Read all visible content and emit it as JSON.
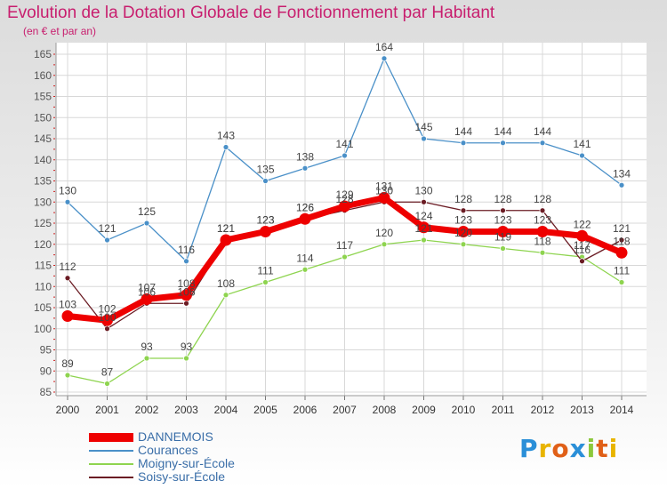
{
  "header": {
    "title": "Evolution de la Dotation Globale de Fonctionnement par Habitant",
    "subtitle": "(en € et par an)"
  },
  "logo": {
    "text": "Proxiti"
  },
  "chart_data": {
    "type": "line",
    "x": [
      2000,
      2001,
      2002,
      2003,
      2004,
      2005,
      2006,
      2007,
      2008,
      2009,
      2010,
      2011,
      2012,
      2013,
      2014
    ],
    "ylim": [
      85,
      165
    ],
    "yticks": [
      85,
      90,
      95,
      100,
      105,
      110,
      115,
      120,
      125,
      130,
      135,
      140,
      145,
      150,
      155,
      160,
      165
    ],
    "grid": true,
    "legend_position": "bottom",
    "series": [
      {
        "name": "Courances",
        "color": "#4a90c8",
        "values": [
          130,
          121,
          125,
          116,
          143,
          135,
          138,
          141,
          164,
          145,
          144,
          144,
          144,
          141,
          134
        ]
      },
      {
        "name": "Moigny-sur-École",
        "color": "#8ed44f",
        "values": [
          89,
          87,
          93,
          93,
          108,
          111,
          114,
          117,
          120,
          121,
          120,
          119,
          118,
          117,
          111
        ]
      },
      {
        "name": "Soisy-sur-École",
        "color": "#6b1c24",
        "values": [
          112,
          100,
          106,
          106,
          121,
          123,
          126,
          128,
          130,
          130,
          128,
          128,
          128,
          116,
          121
        ]
      },
      {
        "name": "DANNEMOIS",
        "color": "#ee0000",
        "values": [
          103,
          102,
          107,
          108,
          121,
          123,
          126,
          129,
          131,
          124,
          123,
          123,
          123,
          122,
          118
        ]
      }
    ],
    "legend_order": [
      "DANNEMOIS",
      "Courances",
      "Moigny-sur-École",
      "Soisy-sur-École"
    ]
  }
}
